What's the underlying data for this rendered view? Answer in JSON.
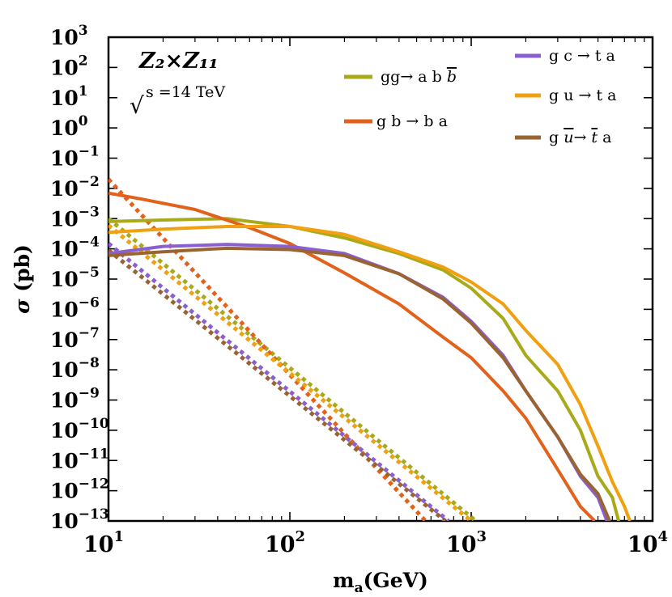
{
  "chart_data": {
    "type": "line",
    "title": "",
    "xlabel": "m_a(GeV)",
    "ylabel": "σ (pb)",
    "xscale": "log",
    "yscale": "log",
    "xlim": [
      10,
      10000
    ],
    "ylim": [
      1e-13,
      1000
    ],
    "legend_position": "top-right",
    "x_ticks": [
      {
        "value": 10,
        "base": "10",
        "exp": "1"
      },
      {
        "value": 100,
        "base": "10",
        "exp": "2"
      },
      {
        "value": 1000,
        "base": "10",
        "exp": "3"
      },
      {
        "value": 10000,
        "base": "10",
        "exp": "4"
      }
    ],
    "y_ticks": [
      {
        "value": 1000.0,
        "base": "10",
        "exp": "3"
      },
      {
        "value": 100.0,
        "base": "10",
        "exp": "2"
      },
      {
        "value": 10.0,
        "base": "10",
        "exp": "1"
      },
      {
        "value": 1.0,
        "base": "10",
        "exp": "0"
      },
      {
        "value": 0.1,
        "base": "10",
        "exp": "−1"
      },
      {
        "value": 0.01,
        "base": "10",
        "exp": "−2"
      },
      {
        "value": 0.001,
        "base": "10",
        "exp": "−3"
      },
      {
        "value": 0.0001,
        "base": "10",
        "exp": "−4"
      },
      {
        "value": 1e-05,
        "base": "10",
        "exp": "−5"
      },
      {
        "value": 1e-06,
        "base": "10",
        "exp": "−6"
      },
      {
        "value": 1e-07,
        "base": "10",
        "exp": "−7"
      },
      {
        "value": 1e-08,
        "base": "10",
        "exp": "−8"
      },
      {
        "value": 1e-09,
        "base": "10",
        "exp": "−9"
      },
      {
        "value": 1e-10,
        "base": "10",
        "exp": "−10"
      },
      {
        "value": 1e-11,
        "base": "10",
        "exp": "−11"
      },
      {
        "value": 1e-12,
        "base": "10",
        "exp": "−12"
      },
      {
        "value": 1e-13,
        "base": "10",
        "exp": "−13"
      }
    ],
    "annotations": {
      "model": "Z₂×Z₁₁",
      "energy_root": "√",
      "energy": "s =14 TeV"
    },
    "series": [
      {
        "name": "gg→ a b b̄",
        "color": "#a8aa1a",
        "style": "solid",
        "points": [
          [
            10,
            0.0008
          ],
          [
            20,
            0.0009
          ],
          [
            45,
            0.001
          ],
          [
            100,
            0.00055
          ],
          [
            200,
            0.00023
          ],
          [
            400,
            7e-05
          ],
          [
            700,
            2e-05
          ],
          [
            1000,
            5e-06
          ],
          [
            1500,
            5e-07
          ],
          [
            2000,
            3e-08
          ],
          [
            3000,
            2e-09
          ],
          [
            4000,
            1e-10
          ],
          [
            5000,
            3e-12
          ],
          [
            6000,
            6e-13
          ],
          [
            6500,
            1e-13
          ]
        ]
      },
      {
        "name": "g b → b a",
        "color": "#e2621b",
        "style": "solid",
        "points": [
          [
            10,
            0.007
          ],
          [
            15,
            0.0045
          ],
          [
            30,
            0.002
          ],
          [
            60,
            0.0005
          ],
          [
            100,
            0.00015
          ],
          [
            200,
            1.6e-05
          ],
          [
            400,
            1.5e-06
          ],
          [
            700,
            1.2e-07
          ],
          [
            1000,
            2.5e-08
          ],
          [
            1500,
            2e-09
          ],
          [
            2000,
            2.5e-10
          ],
          [
            3000,
            5e-12
          ],
          [
            4000,
            3e-13
          ],
          [
            4800,
            1e-13
          ]
        ]
      },
      {
        "name": "g c → t a",
        "color": "#8a5fd0",
        "style": "solid",
        "points": [
          [
            10,
            7e-05
          ],
          [
            20,
            0.00012
          ],
          [
            45,
            0.00014
          ],
          [
            100,
            0.00012
          ],
          [
            200,
            7e-05
          ],
          [
            400,
            1.5e-05
          ],
          [
            700,
            2.5e-06
          ],
          [
            1000,
            4e-07
          ],
          [
            1500,
            3e-08
          ],
          [
            2000,
            2e-09
          ],
          [
            3000,
            6e-11
          ],
          [
            4000,
            3e-12
          ],
          [
            5000,
            6e-13
          ],
          [
            5600,
            1e-13
          ]
        ]
      },
      {
        "name": "g u → t a",
        "color": "#f0a010",
        "style": "solid",
        "points": [
          [
            10,
            0.00035
          ],
          [
            20,
            0.00045
          ],
          [
            45,
            0.00055
          ],
          [
            100,
            0.00055
          ],
          [
            200,
            0.0003
          ],
          [
            400,
            8e-05
          ],
          [
            700,
            2.5e-05
          ],
          [
            1000,
            8e-06
          ],
          [
            1500,
            1.5e-06
          ],
          [
            2000,
            2e-07
          ],
          [
            3000,
            1.5e-08
          ],
          [
            4000,
            7e-10
          ],
          [
            5000,
            3e-11
          ],
          [
            6000,
            2e-12
          ],
          [
            7000,
            3e-13
          ],
          [
            7500,
            1e-13
          ]
        ]
      },
      {
        "name": "g ū→ t̄ a",
        "color": "#9a6332",
        "style": "solid",
        "points": [
          [
            10,
            6e-05
          ],
          [
            20,
            8e-05
          ],
          [
            45,
            0.000105
          ],
          [
            100,
            9.5e-05
          ],
          [
            200,
            6e-05
          ],
          [
            400,
            1.5e-05
          ],
          [
            700,
            2.2e-06
          ],
          [
            1000,
            3.5e-07
          ],
          [
            1500,
            2.5e-08
          ],
          [
            2000,
            2e-09
          ],
          [
            3000,
            6e-11
          ],
          [
            4000,
            3.5e-12
          ],
          [
            5000,
            8e-13
          ],
          [
            5800,
            1e-13
          ]
        ]
      },
      {
        "name": "gg→ a b b̄ (dotted)",
        "color": "#a8aa1a",
        "style": "dotted",
        "points": [
          [
            10,
            0.001
          ],
          [
            1060,
            1e-13
          ]
        ]
      },
      {
        "name": "g b → b a (dotted)",
        "color": "#e2621b",
        "style": "dotted",
        "points": [
          [
            10,
            0.02
          ],
          [
            560,
            1e-13
          ]
        ]
      },
      {
        "name": "g c → t a (dotted)",
        "color": "#8a5fd0",
        "style": "dotted",
        "points": [
          [
            10,
            0.00015
          ],
          [
            750,
            1e-13
          ]
        ]
      },
      {
        "name": "g u → t a (dotted)",
        "color": "#f0a010",
        "style": "dotted",
        "points": [
          [
            10,
            0.0006
          ],
          [
            1000,
            1e-13
          ]
        ]
      },
      {
        "name": "g ū→ t̄ a (dotted)",
        "color": "#9a6332",
        "style": "dotted",
        "points": [
          [
            10,
            9e-05
          ],
          [
            720,
            1e-13
          ]
        ]
      }
    ],
    "legend": [
      {
        "label_parts": [
          "gg→ a b ",
          "b"
        ],
        "overline_last": true,
        "color": "#a8aa1a"
      },
      {
        "label_parts": [
          "g b → b a"
        ],
        "overline_last": false,
        "color": "#e2621b"
      },
      {
        "label_parts": [
          "g c → t a"
        ],
        "overline_last": false,
        "color": "#8a5fd0"
      },
      {
        "label_parts": [
          "g u → t a"
        ],
        "overline_last": false,
        "color": "#f0a010"
      },
      {
        "label_parts": [
          "g ",
          "u",
          "→ ",
          "t",
          " a"
        ],
        "overline_idx": [
          1,
          3
        ],
        "color": "#9a6332"
      }
    ]
  }
}
